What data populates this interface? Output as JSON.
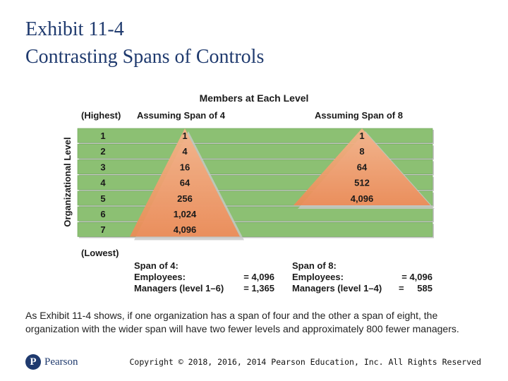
{
  "title": {
    "line1": "Exhibit 11-4",
    "line2": "Contrasting Spans of Controls"
  },
  "figure": {
    "heading": "Members at Each Level",
    "axis_label": "Organizational Level",
    "highest_label": "(Highest)",
    "lowest_label": "(Lowest)",
    "levels": [
      "1",
      "2",
      "3",
      "4",
      "5",
      "6",
      "7"
    ],
    "span4": {
      "header": "Assuming Span of 4",
      "members": [
        "1",
        "4",
        "16",
        "64",
        "256",
        "1,024",
        "4,096"
      ],
      "summary_title": "Span of 4:",
      "employees_label": "Employees:",
      "employees_value": "= 4,096",
      "managers_label": "Managers (level 1–6)",
      "managers_value": "= 1,365"
    },
    "span8": {
      "header": "Assuming Span of 8",
      "members": [
        "1",
        "8",
        "64",
        "512",
        "4,096"
      ],
      "summary_title": "Span of 8:",
      "employees_label": "Employees:",
      "employees_value": "= 4,096",
      "managers_label": "Managers (level 1–4)",
      "managers_eq": "=",
      "managers_value": "585"
    },
    "colors": {
      "band": "#8cc073",
      "band_edge": "#6aa356",
      "pyramid": "#ee8a55",
      "pyramid_light": "#f6b48b",
      "shadow": "#c8c8c8",
      "text": "#1a1a1a"
    }
  },
  "caption": "As Exhibit 11-4 shows, if one organization has a span of four and the other a span of eight, the organization with the wider span will have two fewer levels and approximately 800 fewer managers.",
  "footer": {
    "logo_mark": "P",
    "logo_text": "Pearson",
    "copyright": "Copyright © 2018, 2016, 2014 Pearson Education, Inc. All Rights Reserved"
  }
}
